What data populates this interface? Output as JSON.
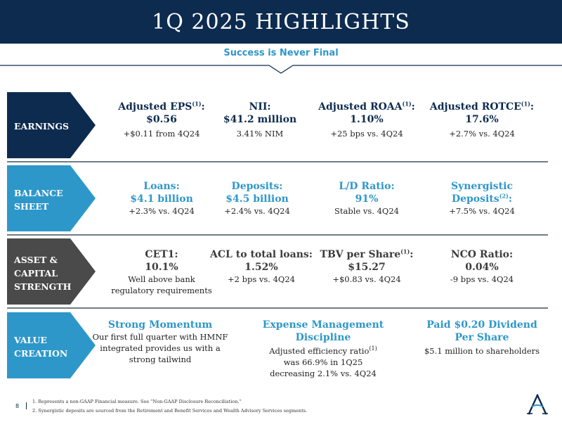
{
  "header": {
    "title": "1Q 2025 HIGHLIGHTS",
    "subtitle": "Success is Never Final"
  },
  "colors": {
    "navy": "#0d2b4f",
    "teal": "#2e97c9",
    "charcoal": "#4a4a4a",
    "light_blue": "#2e97c9"
  },
  "rows": [
    {
      "label_lines": [
        "EARNINGS"
      ],
      "metrics": [
        {
          "title_main": "Adjusted EPS",
          "title_sup": "(1)",
          "title_tail": ":",
          "value": "$0.56",
          "sub": "+$0.11 from 4Q24"
        },
        {
          "title_main": "NII:",
          "value": "$41.2 million",
          "sub": "3.41% NIM"
        },
        {
          "title_main": "Adjusted ROAA",
          "title_sup": "(1)",
          "title_tail": ":",
          "value": "1.10%",
          "sub": "+25 bps vs. 4Q24"
        },
        {
          "title_main": "Adjusted ROTCE",
          "title_sup": "(1)",
          "title_tail": ":",
          "value": "17.6%",
          "sub": "+2.7% vs. 4Q24"
        }
      ]
    },
    {
      "label_lines": [
        "BALANCE",
        "SHEET"
      ],
      "metrics": [
        {
          "title_main": "Loans:",
          "value": "$4.1 billion",
          "sub": "+2.3% vs. 4Q24"
        },
        {
          "title_main": "Deposits:",
          "value": "$4.5 billion",
          "sub": "+2.4% vs. 4Q24"
        },
        {
          "title_main": "L/D Ratio:",
          "value": "91%",
          "sub": "Stable vs. 4Q24"
        },
        {
          "title_main": "Synergistic",
          "value_main": "Deposits",
          "value_sup": "(2)",
          "value_tail": ":",
          "sub": "+7.5% vs. 4Q24"
        }
      ]
    },
    {
      "label_lines": [
        "ASSET &",
        "CAPITAL",
        "STRENGTH"
      ],
      "metrics": [
        {
          "title_main": "CET1:",
          "value": "10.1%",
          "sub_lines": [
            "Well above bank",
            "regulatory requirements"
          ]
        },
        {
          "title_main": "ACL to total loans:",
          "value": "1.52%",
          "sub": "+2 bps vs. 4Q24"
        },
        {
          "title_main": "TBV per Share",
          "title_sup": "(1)",
          "title_tail": ":",
          "value": "$15.27",
          "sub": "+$0.83 vs. 4Q24"
        },
        {
          "title_main": "NCO Ratio:",
          "value": "0.04%",
          "sub": "-9 bps vs. 4Q24"
        }
      ]
    },
    {
      "label_lines": [
        "VALUE",
        "CREATION"
      ],
      "metrics": [
        {
          "title_main": "Strong Momentum",
          "sub_lines": [
            "Our first full quarter with HMNF",
            "integrated provides us with a",
            "strong tailwind"
          ]
        },
        {
          "title_lines": [
            "Expense Management",
            "Discipline"
          ],
          "sub_first": "Adjusted efficiency ratio",
          "sub_first_sup": "(1)",
          "sub_lines": [
            "was 66.9% in 1Q25",
            "decreasing 2.1% vs. 4Q24"
          ]
        },
        {
          "title_lines": [
            "Paid $0.20 Dividend",
            "Per Share"
          ],
          "sub": "$5.1 million to shareholders"
        }
      ]
    }
  ],
  "footer": {
    "page_number": "8",
    "footnotes": [
      "1. Represents a non-GAAP Financial measure. See “Non-GAAP Disclosure Reconciliation.”",
      "2. Synergistic deposits are sourced from the Retirement and Benefit Services and Wealth Advisory Services segments."
    ]
  }
}
